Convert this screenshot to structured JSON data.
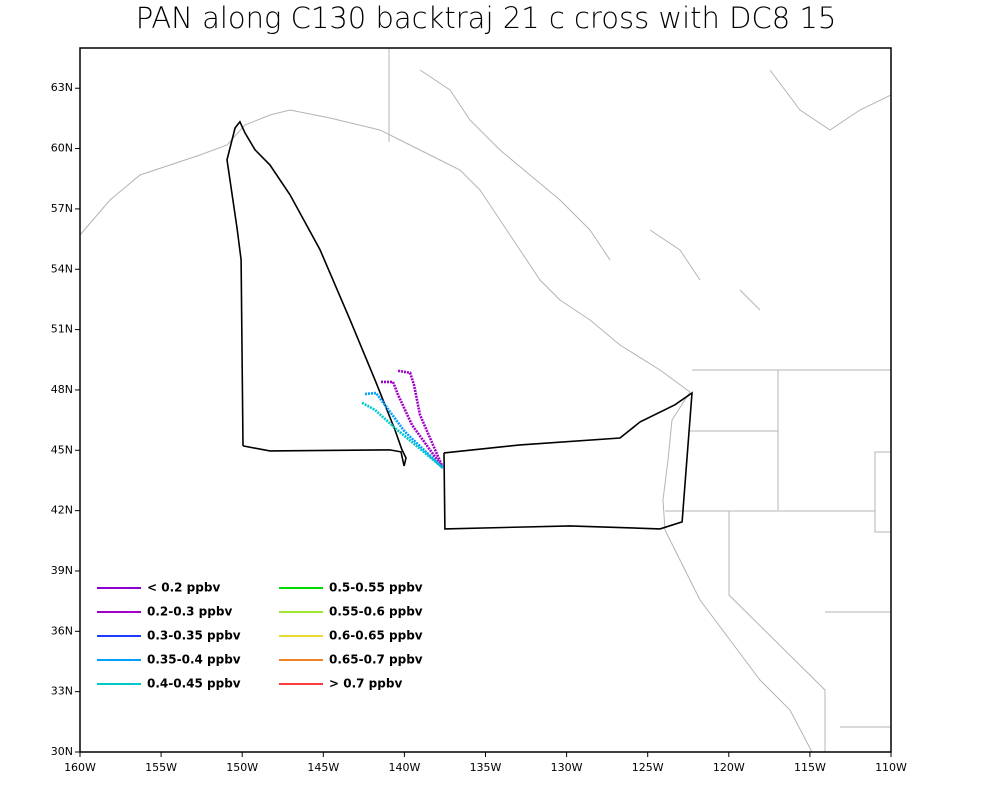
{
  "chart_data": {
    "type": "map",
    "title": "PAN along C130 backtraj 21 c cross with DC8 15",
    "xlim": [
      -160,
      -110
    ],
    "ylim": [
      30,
      65
    ],
    "xticks": [
      {
        "value": -160,
        "label": "160W"
      },
      {
        "value": -155,
        "label": "155W"
      },
      {
        "value": -150,
        "label": "150W"
      },
      {
        "value": -145,
        "label": "145W"
      },
      {
        "value": -140,
        "label": "140W"
      },
      {
        "value": -135,
        "label": "135W"
      },
      {
        "value": -130,
        "label": "130W"
      },
      {
        "value": -125,
        "label": "125W"
      },
      {
        "value": -120,
        "label": "120W"
      },
      {
        "value": -115,
        "label": "115W"
      },
      {
        "value": -110,
        "label": "110W"
      }
    ],
    "yticks": [
      {
        "value": 30,
        "label": "30N"
      },
      {
        "value": 33,
        "label": "33N"
      },
      {
        "value": 36,
        "label": "36N"
      },
      {
        "value": 39,
        "label": "39N"
      },
      {
        "value": 42,
        "label": "42N"
      },
      {
        "value": 45,
        "label": "45N"
      },
      {
        "value": 48,
        "label": "48N"
      },
      {
        "value": 51,
        "label": "51N"
      },
      {
        "value": 54,
        "label": "54N"
      },
      {
        "value": 57,
        "label": "57N"
      },
      {
        "value": 60,
        "label": "60N"
      },
      {
        "value": 63,
        "label": "63N"
      }
    ],
    "series": [
      {
        "color": "#000000",
        "x": [
          -149.95,
          -150.07,
          -150.32,
          -150.94,
          -150.44,
          -150.14,
          -149.83,
          -149.21,
          -148.29,
          -147.05,
          -145.2,
          -143.35,
          -141.81,
          -140.58,
          -140.15,
          -139.9,
          -140.02,
          -140.21,
          -140.89,
          -148.29,
          -149.95,
          null,
          -137.56,
          -132.87,
          -126.71,
          -125.47,
          -123.32,
          -122.27,
          -122.88,
          -124.24,
          -129.79,
          -137.5,
          -137.56
        ],
        "y": [
          45.22,
          54.47,
          56.06,
          59.44,
          61.03,
          61.33,
          60.78,
          59.94,
          59.19,
          57.7,
          54.96,
          51.48,
          48.5,
          46.01,
          45.02,
          44.62,
          44.22,
          44.92,
          45.02,
          44.97,
          45.22,
          null,
          44.87,
          45.27,
          45.61,
          46.41,
          47.26,
          47.85,
          41.44,
          41.09,
          41.24,
          41.09,
          44.87
        ]
      },
      {
        "color": "#a000c8",
        "x": [
          -140.39,
          -139.65,
          -139.41,
          -139.04,
          -137.62
        ],
        "y": [
          48.95,
          48.85,
          48.25,
          46.76,
          44.12
        ]
      },
      {
        "color": "#a000c8",
        "x": [
          -141.44,
          -140.7,
          -140.39,
          -139.53,
          -137.62
        ],
        "y": [
          48.4,
          48.4,
          47.75,
          46.26,
          44.12
        ]
      },
      {
        "color": "#00a0ff",
        "x": [
          -142.43,
          -141.75,
          -141.2,
          -139.96,
          -137.62
        ],
        "y": [
          47.8,
          47.85,
          47.26,
          45.91,
          44.12
        ]
      },
      {
        "color": "#00c8c8",
        "x": [
          -142.61,
          -141.81,
          -140.58,
          -137.62
        ],
        "y": [
          47.36,
          47.01,
          46.11,
          44.12
        ]
      }
    ],
    "legend": [
      {
        "label": "< 0.2 ppbv",
        "color": "#8c00d2"
      },
      {
        "label": "0.2-0.3 ppbv",
        "color": "#a000c8"
      },
      {
        "label": "0.3-0.35 ppbv",
        "color": "#1e3cff"
      },
      {
        "label": "0.35-0.4 ppbv",
        "color": "#00a0ff"
      },
      {
        "label": "0.4-0.45 ppbv",
        "color": "#00c8c8"
      },
      {
        "label": "0.5-0.55 ppbv",
        "color": "#00dc00"
      },
      {
        "label": "0.55-0.6 ppbv",
        "color": "#a0e632"
      },
      {
        "label": "0.6-0.65 ppbv",
        "color": "#e6dc32"
      },
      {
        "label": "0.65-0.7 ppbv",
        "color": "#f08228"
      },
      {
        "label": "> 0.7 ppbv",
        "color": "#fa3c3c"
      }
    ]
  }
}
